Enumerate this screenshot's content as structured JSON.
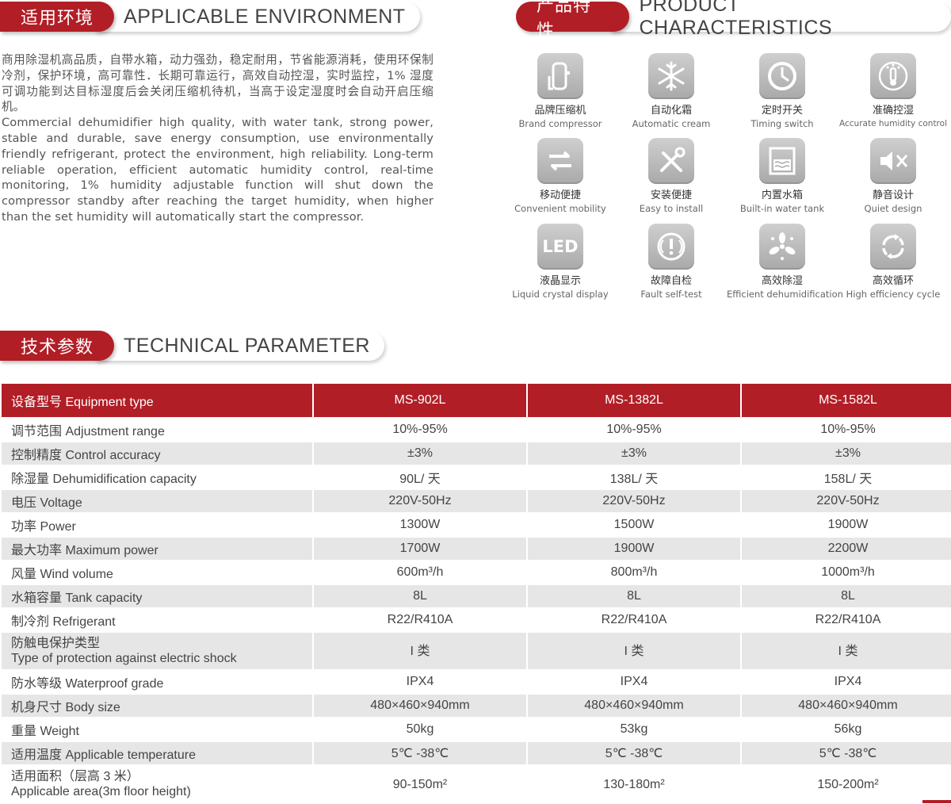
{
  "env": {
    "title_zh": "适用环境",
    "title_en": "APPLICABLE ENVIRONMENT",
    "text_zh": "商用除湿机高品质，自带水箱，动力强劲，稳定耐用，节省能源消耗，使用环保制冷剂，保护环境，高可靠性．长期可靠运行，高效自动控湿，实时监控，1% 湿度可调功能到达目标湿度后会关闭压缩机待机，当高于设定湿度时会自动开启压缩机。",
    "text_en": "Commercial dehumidifier high quality, with water tank, strong power, stable and durable, save energy consumption, use environmentally friendly refrigerant, protect the environment, high reliability. Long-term reliable operation, efficient automatic humidity control, real-time monitoring, 1% humidity adjustable function will shut down the compressor standby after reaching the target humidity, when higher than the set humidity will automatically start the compressor."
  },
  "product": {
    "title_zh": "产品特性",
    "title_en": "PRODUCT CHARACTERISTICS",
    "features": [
      {
        "zh": "品牌压缩机",
        "en": "Brand compressor",
        "icon": "compressor-icon"
      },
      {
        "zh": "自动化霜",
        "en": "Automatic cream",
        "icon": "snowflake-icon"
      },
      {
        "zh": "定时开关",
        "en": "Timing switch",
        "icon": "clock-icon"
      },
      {
        "zh": "准确控湿",
        "en": "Accurate humidity control",
        "icon": "thermometer-icon"
      },
      {
        "zh": "移动便捷",
        "en": "Convenient mobility",
        "icon": "arrows-icon"
      },
      {
        "zh": "安装便捷",
        "en": "Easy to install",
        "icon": "tools-icon"
      },
      {
        "zh": "内置水箱",
        "en": "Built-in water tank",
        "icon": "water-tank-icon"
      },
      {
        "zh": "静音设计",
        "en": "Quiet design",
        "icon": "mute-icon"
      },
      {
        "zh": "液晶显示",
        "en": "Liquid crystal display",
        "icon": "led-icon",
        "icon_text": "LED"
      },
      {
        "zh": "故障自检",
        "en": "Fault self-test",
        "icon": "warning-icon"
      },
      {
        "zh": "高效除湿",
        "en": "Efficient dehumidification",
        "icon": "fan-icon"
      },
      {
        "zh": "高效循环",
        "en": "High efficiency cycle",
        "icon": "cycle-icon"
      }
    ]
  },
  "tech": {
    "title_zh": "技术参数",
    "title_en": "TECHNICAL PARAMETER",
    "header": [
      "设备型号 Equipment type",
      "MS-902L",
      "MS-1382L",
      "MS-1582L"
    ],
    "rows": [
      {
        "label": "调节范围 Adjustment range",
        "values": [
          "10%-95%",
          "10%-95%",
          "10%-95%"
        ]
      },
      {
        "label": "控制精度 Control accuracy",
        "values": [
          "±3%",
          "±3%",
          "±3%"
        ]
      },
      {
        "label": "除湿量 Dehumidification capacity",
        "values": [
          "90L/ 天",
          "138L/ 天",
          "158L/ 天"
        ]
      },
      {
        "label": "电压 Voltage",
        "values": [
          "220V-50Hz",
          "220V-50Hz",
          "220V-50Hz"
        ]
      },
      {
        "label": "功率 Power",
        "values": [
          "1300W",
          "1500W",
          "1900W"
        ]
      },
      {
        "label": "最大功率 Maximum power",
        "values": [
          "1700W",
          "1900W",
          "2200W"
        ]
      },
      {
        "label": "风量 Wind volume",
        "values": [
          "600m³/h",
          "800m³/h",
          "1000m³/h"
        ]
      },
      {
        "label": "水箱容量 Tank capacity",
        "values": [
          "8L",
          "8L",
          "8L"
        ]
      },
      {
        "label": "制冷剂 Refrigerant",
        "values": [
          "R22/R410A",
          "R22/R410A",
          "R22/R410A"
        ]
      },
      {
        "label": "防触电保护类型",
        "label2": "Type of protection against electric shock",
        "values": [
          "I 类",
          "I 类",
          "I 类"
        ]
      },
      {
        "label": "防水等级 Waterproof grade",
        "values": [
          "IPX4",
          "IPX4",
          "IPX4"
        ]
      },
      {
        "label": "机身尺寸 Body size",
        "values": [
          "480×460×940mm",
          "480×460×940mm",
          "480×460×940mm"
        ]
      },
      {
        "label": "重量 Weight",
        "values": [
          "50kg",
          "53kg",
          "56kg"
        ]
      },
      {
        "label": "适用温度 Applicable temperature",
        "values": [
          "5℃ -38℃",
          "5℃ -38℃",
          "5℃ -38℃"
        ]
      },
      {
        "label": "适用面积（层高 3 米）",
        "label2": "Applicable area(3m floor height)",
        "values": [
          "90-150m²",
          "130-180m²",
          "150-200m²"
        ]
      }
    ]
  },
  "colors": {
    "accent": "#b21e26",
    "row_alt": "#e6e6e6",
    "icon_bg": "#b9b9b9"
  }
}
